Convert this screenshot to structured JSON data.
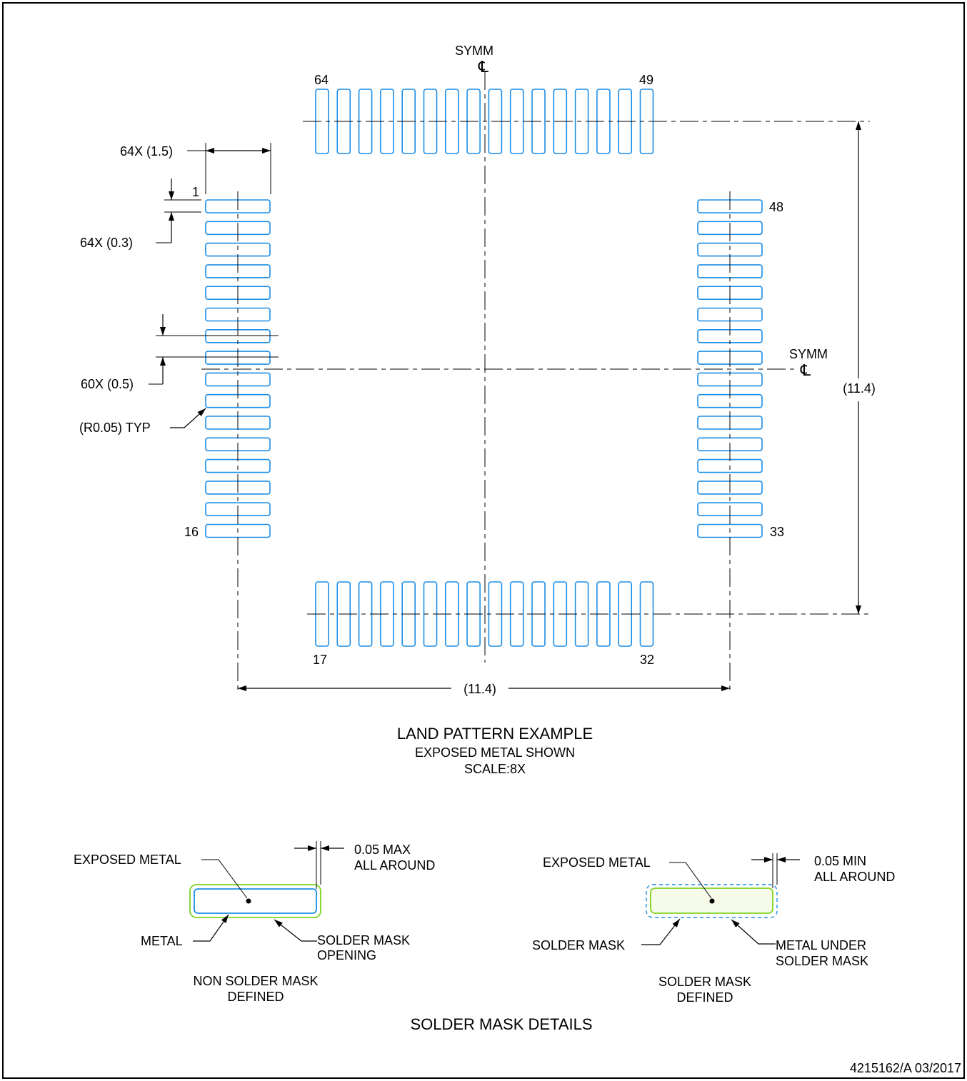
{
  "land_pattern": {
    "pin_labels": {
      "top_left": "64",
      "top_right": "49",
      "left_top": "1",
      "left_bottom": "16",
      "right_top": "48",
      "right_bottom": "33",
      "bottom_left": "17",
      "bottom_right": "32"
    },
    "symm_top": "SYMM",
    "symm_right": "SYMM",
    "cl_symbol": "℄",
    "pad_length_label": "64X (1.5)",
    "pad_width_label": "64X (0.3)",
    "pitch_label": "60X (0.5)",
    "radius_label": "(R0.05) TYP",
    "span_vertical_label": "(11.4)",
    "span_horizontal_label": "(11.4)",
    "title": "LAND PATTERN EXAMPLE",
    "subtitle": "EXPOSED METAL SHOWN",
    "scale": "SCALE:8X"
  },
  "solder_mask_details": {
    "nsmd": {
      "exposed_metal": "EXPOSED METAL",
      "clearance_line1": "0.05 MAX",
      "clearance_line2": "ALL AROUND",
      "metal": "METAL",
      "opening_line1": "SOLDER MASK",
      "opening_line2": "OPENING",
      "caption_line1": "NON SOLDER MASK",
      "caption_line2": "DEFINED"
    },
    "smd": {
      "exposed_metal": "EXPOSED METAL",
      "clearance_line1": "0.05 MIN",
      "clearance_line2": "ALL AROUND",
      "solder_mask": "SOLDER MASK",
      "metal_under_line1": "METAL UNDER",
      "metal_under_line2": "SOLDER MASK",
      "caption_line1": "SOLDER MASK",
      "caption_line2": "DEFINED"
    },
    "title": "SOLDER MASK DETAILS"
  },
  "footer": {
    "drawing_number": "4215162/A   03/2017"
  },
  "colors": {
    "metal": "#1c8ee6",
    "solder_mask": "#7ed321"
  }
}
